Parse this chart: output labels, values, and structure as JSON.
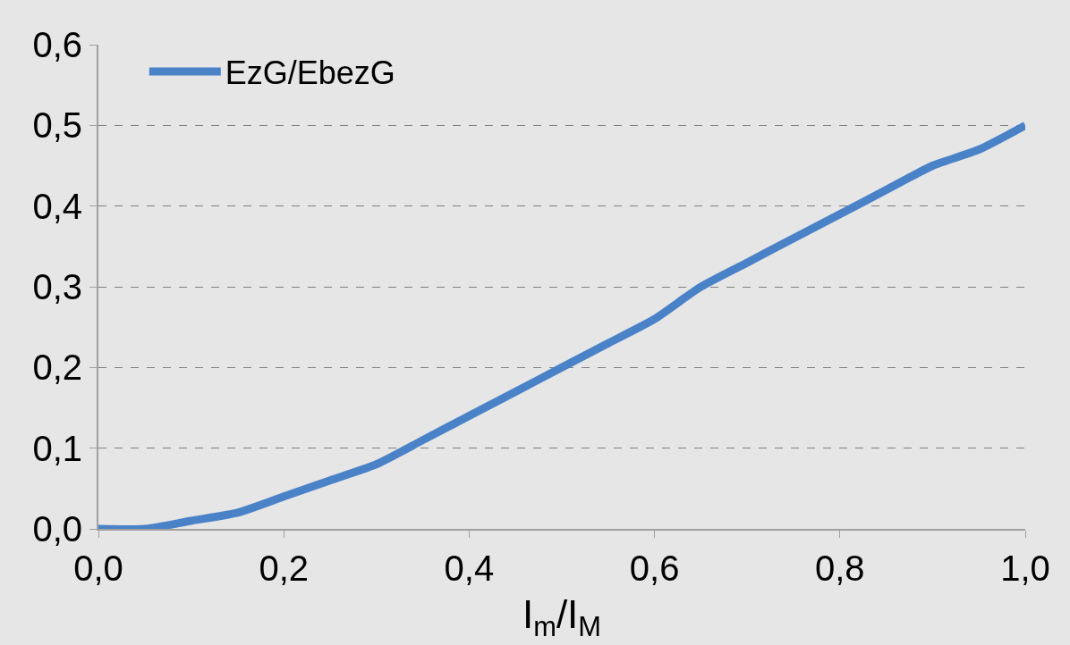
{
  "chart_data": {
    "type": "line",
    "xlabel": "I$_{m}$/I$_{M}$",
    "x": [
      0,
      0.05,
      0.1,
      0.15,
      0.2,
      0.25,
      0.3,
      0.35,
      0.4,
      0.45,
      0.5,
      0.55,
      0.6,
      0.65,
      0.7,
      0.75,
      0.8,
      0.85,
      0.9,
      0.95,
      1.0
    ],
    "series": [
      {
        "name": "EzG/EbezG",
        "color": "#4a82c8",
        "values": [
          0,
          0.0,
          0.01,
          0.02,
          0.04,
          0.06,
          0.08,
          0.11,
          0.14,
          0.17,
          0.2,
          0.23,
          0.26,
          0.3,
          0.33,
          0.36,
          0.39,
          0.42,
          0.45,
          0.47,
          0.5
        ]
      }
    ],
    "xlim": [
      0,
      1
    ],
    "ylim": [
      0,
      0.6
    ],
    "xticks": [
      {
        "value": 0,
        "label": "0,0"
      },
      {
        "value": 0.2,
        "label": "0,2"
      },
      {
        "value": 0.4,
        "label": "0,4"
      },
      {
        "value": 0.6,
        "label": "0,6"
      },
      {
        "value": 0.8,
        "label": "0,8"
      },
      {
        "value": 1,
        "label": "1,0"
      }
    ],
    "yticks": [
      {
        "value": 0,
        "label": "0,0"
      },
      {
        "value": 0.1,
        "label": "0,1"
      },
      {
        "value": 0.2,
        "label": "0,2"
      },
      {
        "value": 0.3,
        "label": "0,3"
      },
      {
        "value": 0.4,
        "label": "0,4"
      },
      {
        "value": 0.5,
        "label": "0,5"
      },
      {
        "value": 0.6,
        "label": "0,6"
      }
    ],
    "grid": "y",
    "legend": "top left",
    "marker": "none",
    "line_style": "solid"
  }
}
